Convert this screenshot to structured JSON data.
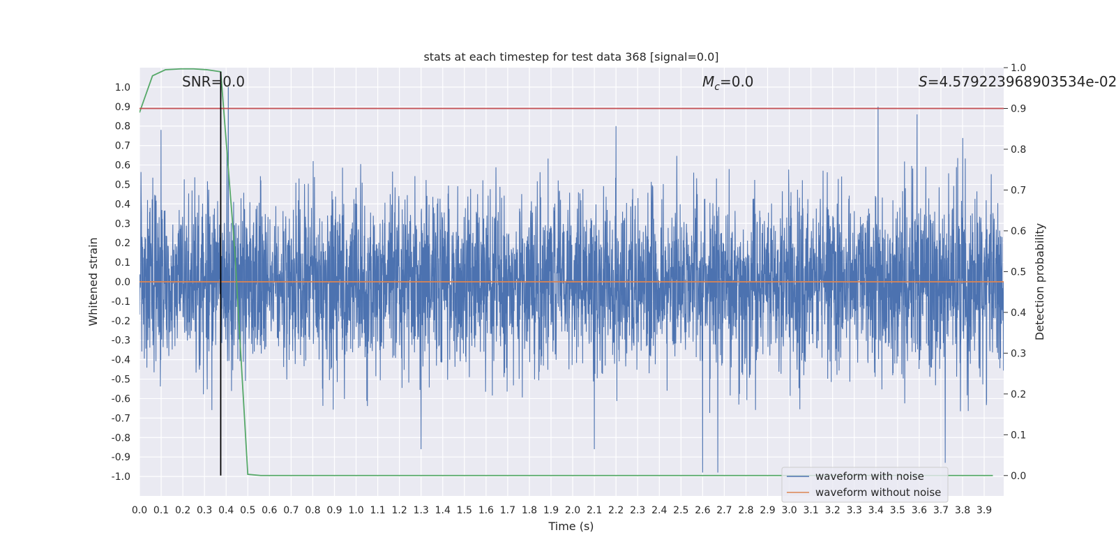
{
  "chart_data": {
    "type": "line",
    "title": "stats at each timestep for test data 368 [signal=0.0]",
    "xlabel": "Time (s)",
    "ylabel": "Whitened strain",
    "y2label": "Detection probability",
    "xlim": [
      0.0,
      3.99
    ],
    "ylim": [
      -1.1,
      1.1
    ],
    "y2lim": [
      -0.05,
      1.0
    ],
    "xticks": [
      "0.0",
      "0.1",
      "0.2",
      "0.3",
      "0.4",
      "0.5",
      "0.6",
      "0.7",
      "0.8",
      "0.9",
      "1.0",
      "1.1",
      "1.2",
      "1.3",
      "1.4",
      "1.5",
      "1.6",
      "1.7",
      "1.8",
      "1.9",
      "2.0",
      "2.1",
      "2.2",
      "2.3",
      "2.4",
      "2.5",
      "2.6",
      "2.7",
      "2.8",
      "2.9",
      "3.0",
      "3.1",
      "3.2",
      "3.3",
      "3.4",
      "3.5",
      "3.6",
      "3.7",
      "3.8",
      "3.9"
    ],
    "yticks": [
      "1.0",
      "0.9",
      "0.8",
      "0.7",
      "0.6",
      "0.5",
      "0.4",
      "0.3",
      "0.2",
      "0.1",
      "0.0",
      "-0.1",
      "-0.2",
      "-0.3",
      "-0.4",
      "-0.5",
      "-0.6",
      "-0.7",
      "-0.8",
      "-0.9",
      "-1.0"
    ],
    "y2ticks": [
      "1.0",
      "0.9",
      "0.8",
      "0.7",
      "0.6",
      "0.5",
      "0.4",
      "0.3",
      "0.2",
      "0.1",
      "0.0"
    ],
    "grid": true,
    "legend_position": "lower-right",
    "annotations": {
      "snr": "SNR=0.0",
      "mc_symbol": "M",
      "mc_sub": "c",
      "mc_value": "=0.0",
      "s_symbol": "S",
      "s_value": "=4.579223968903534e-02"
    },
    "series": [
      {
        "name": "waveform with noise",
        "color": "#4c72b0",
        "axis": "left",
        "description": "noisy whitened strain, amplitude mostly within about ±0.6 with peaks to about ±1.0",
        "peaks": [
          {
            "x": 0.41,
            "y": 1.0
          },
          {
            "x": 3.41,
            "y": 0.9
          },
          {
            "x": 3.59,
            "y": 0.86
          },
          {
            "x": 2.2,
            "y": 0.8
          },
          {
            "x": 2.6,
            "y": -0.98
          },
          {
            "x": 2.67,
            "y": -0.98
          },
          {
            "x": 3.72,
            "y": -0.93
          },
          {
            "x": 1.3,
            "y": -0.86
          },
          {
            "x": 2.1,
            "y": -0.86
          }
        ]
      },
      {
        "name": "waveform without noise",
        "color": "#dd8452",
        "axis": "left",
        "x": [
          0.0,
          3.99
        ],
        "y": [
          0.0,
          0.0
        ]
      },
      {
        "color": "#55a868",
        "axis": "right",
        "x": [
          0.0,
          0.06,
          0.12,
          0.19,
          0.25,
          0.31,
          0.375,
          0.44,
          0.5,
          0.56,
          0.62,
          0.75,
          1.0,
          1.5,
          2.0,
          2.5,
          3.0,
          3.5,
          3.94
        ],
        "y": [
          0.89,
          0.98,
          0.995,
          0.997,
          0.997,
          0.995,
          0.99,
          0.55,
          0.003,
          0.0,
          0.0,
          0.0,
          0.0,
          0.0,
          0.0,
          0.0,
          0.0,
          0.0,
          0.0
        ]
      },
      {
        "color": "#c44e52",
        "axis": "right",
        "x": [
          0.0,
          3.99
        ],
        "y": [
          0.9,
          0.9
        ]
      },
      {
        "color": "#000000",
        "axis": "right",
        "x": [
          0.375,
          0.375
        ],
        "y": [
          0.0,
          0.99
        ]
      }
    ]
  }
}
